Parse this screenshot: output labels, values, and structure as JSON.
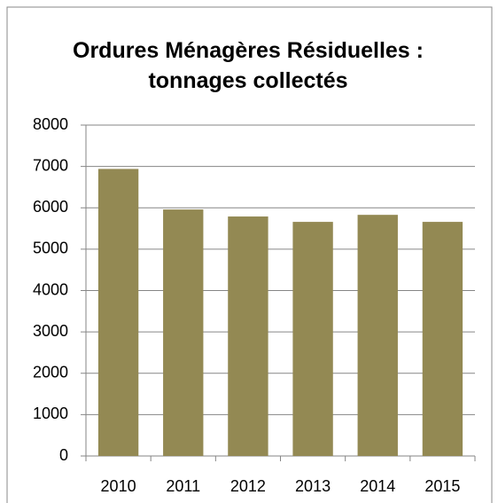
{
  "chart_data": {
    "type": "bar",
    "title": "Ordures Ménagères Résiduelles : tonnages collectés",
    "categories": [
      "2010",
      "2011",
      "2012",
      "2013",
      "2014",
      "2015"
    ],
    "values": [
      6940,
      5960,
      5790,
      5660,
      5830,
      5660
    ],
    "color": "#938953",
    "ylim": [
      0,
      8000
    ],
    "yticks": [
      0,
      1000,
      2000,
      3000,
      4000,
      5000,
      6000,
      7000,
      8000
    ],
    "grid": true
  }
}
